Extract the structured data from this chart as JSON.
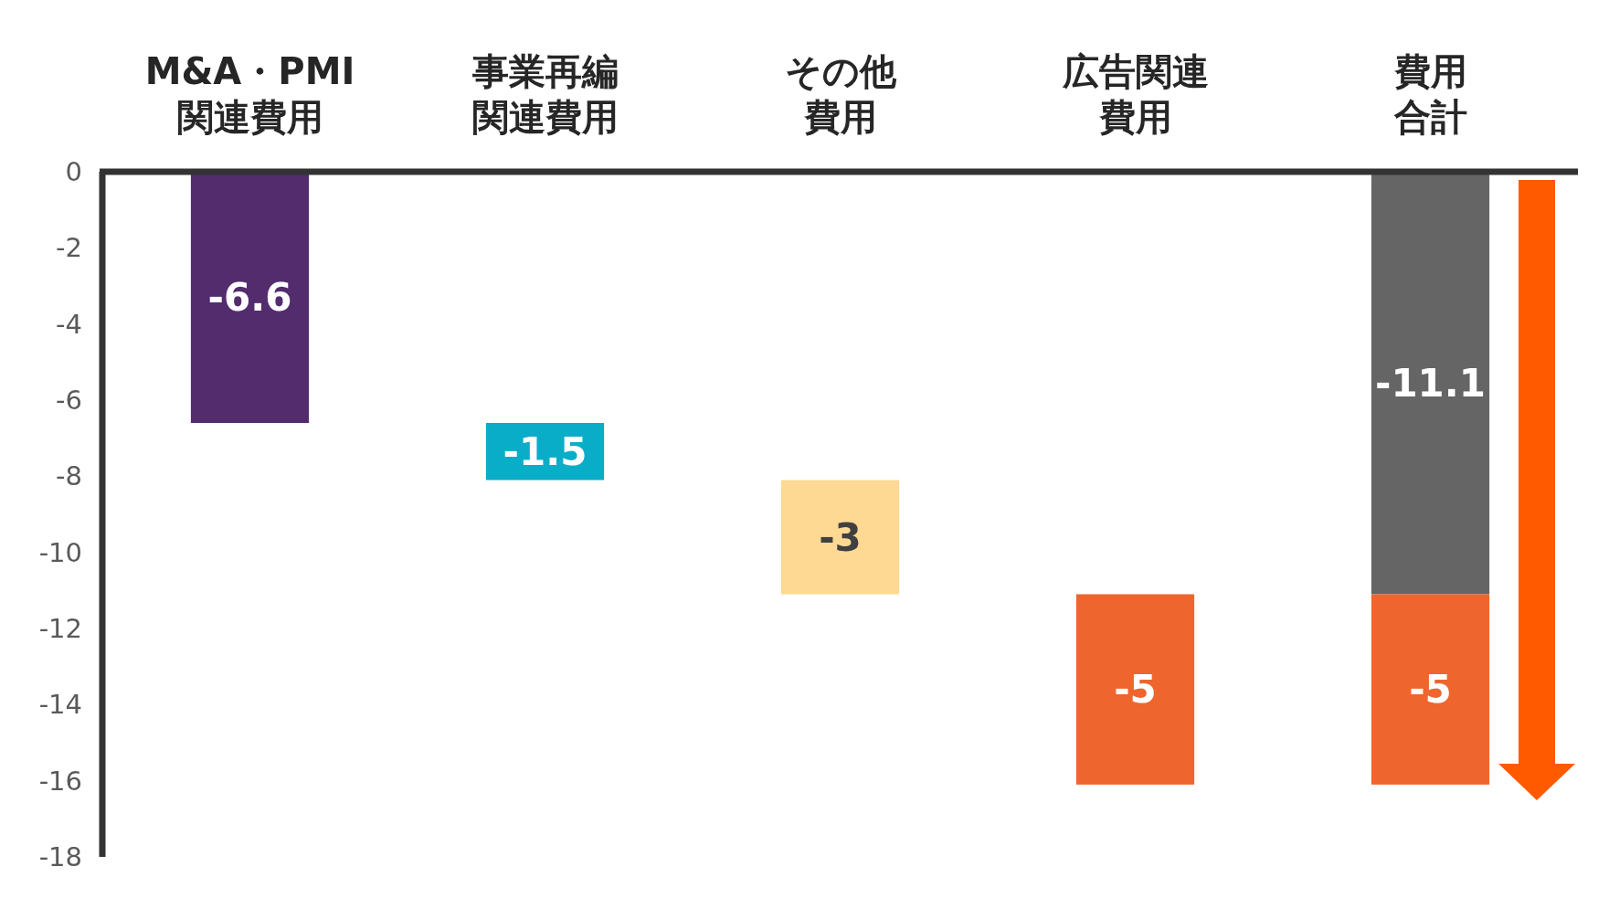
{
  "chart_data": {
    "type": "bar",
    "categories": [
      "M&A・PMI関連費用",
      "事業再編関連費用",
      "その他費用",
      "広告関連費用",
      "費用合計"
    ],
    "series": [
      {
        "colors": [
          "#532c6e",
          "#0aadc8",
          "#fed993",
          "#ee652d",
          "#656565"
        ],
        "values": [
          -6.6,
          -1.5,
          -3,
          -5,
          -11.1
        ],
        "base": [
          0,
          -6.6,
          -8.1,
          -11.1,
          0
        ]
      },
      {
        "color": "#ee652d",
        "values": [
          null,
          null,
          null,
          null,
          -5
        ],
        "base": [
          null,
          null,
          null,
          null,
          -11.1
        ]
      }
    ],
    "ylim": [
      -18,
      0
    ],
    "yticks": [
      0,
      -2,
      -4,
      -6,
      -8,
      -10,
      -12,
      -14,
      -16,
      -18
    ],
    "grid": false,
    "data_labels": true
  }
}
